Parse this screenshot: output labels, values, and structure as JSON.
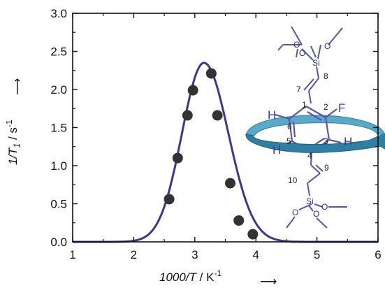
{
  "chart_data": {
    "type": "scatter",
    "xlabel_italic": "1000/T",
    "xlabel_unit": " / K",
    "xlabel_exp": "-1",
    "ylabel_italic": "1/T",
    "ylabel_sub": "1",
    "ylabel_unit": " / s",
    "ylabel_exp": "-1",
    "arrow_glyph": "⟶",
    "xlim": [
      1,
      6
    ],
    "ylim": [
      0,
      3.0
    ],
    "x_ticks": [
      1,
      2,
      3,
      4,
      5,
      6
    ],
    "x_tick_labels": [
      "1",
      "2",
      "3",
      "4",
      "5",
      "6"
    ],
    "y_ticks": [
      0,
      0.5,
      1.0,
      1.5,
      2.0,
      2.5,
      3.0
    ],
    "y_tick_labels": [
      "0.0",
      "0.5",
      "1.0",
      "1.5",
      "2.0",
      "2.5",
      "3.0"
    ],
    "grid": false,
    "series": [
      {
        "kind": "points",
        "color": "#333333",
        "x": [
          2.58,
          2.72,
          2.88,
          2.97,
          3.27,
          3.37,
          3.58,
          3.72,
          3.95
        ],
        "y": [
          0.56,
          1.1,
          1.66,
          1.99,
          2.21,
          1.66,
          0.77,
          0.28,
          0.1
        ]
      },
      {
        "kind": "fit-curve",
        "color": "#3a3a8c",
        "peak_x": 3.15,
        "peak_y": 2.35,
        "sigma_left": 0.36,
        "sigma_right": 0.4
      }
    ]
  },
  "molecule": {
    "colors": {
      "bond": "#5656a8",
      "ring": "#2f7fa3",
      "ring_light": "#5aa9c9",
      "atom": "#2e2e82"
    },
    "atoms": {
      "si": "Si",
      "o": "O",
      "f": "F",
      "h": "H"
    },
    "numbers": [
      "1",
      "2",
      "3",
      "4",
      "5",
      "6",
      "7",
      "8",
      "9",
      "10"
    ]
  }
}
